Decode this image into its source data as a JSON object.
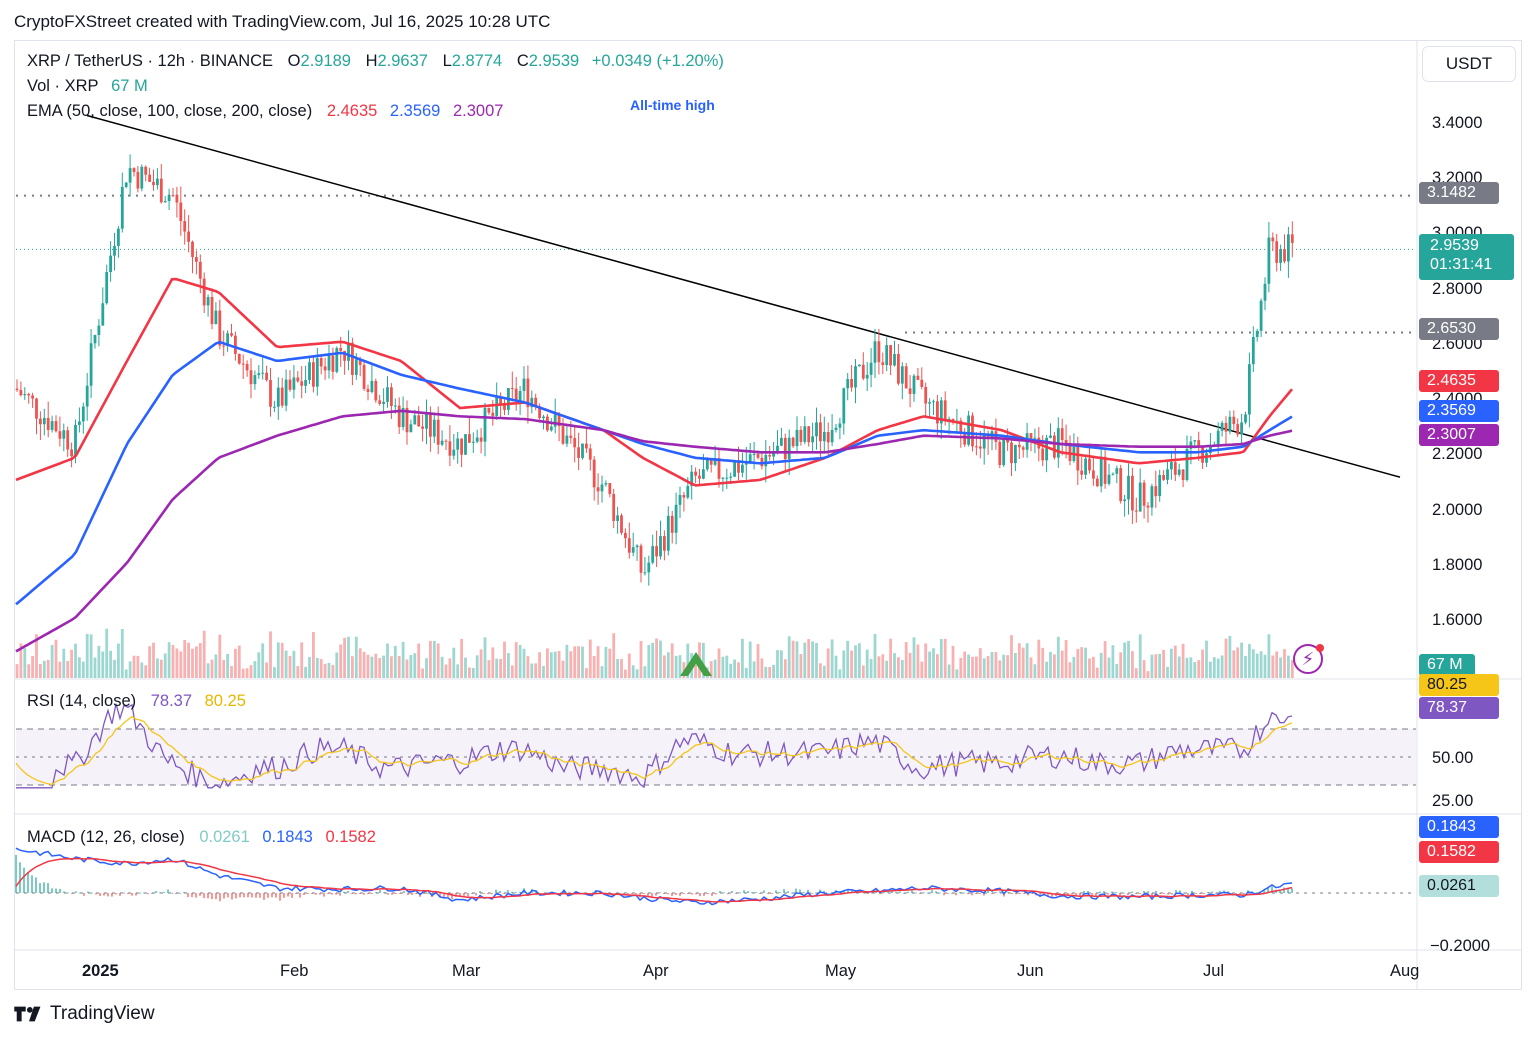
{
  "header": {
    "credit": "CryptoFXStreet created with TradingView.com, Jul 16, 2025 10:28 UTC"
  },
  "legend": {
    "symbol": "XRP / TetherUS · 12h · BINANCE",
    "open_label": "O",
    "open": "2.9189",
    "high_label": "H",
    "high": "2.9637",
    "low_label": "L",
    "low": "2.8774",
    "close_label": "C",
    "close": "2.9539",
    "change": "+0.0349 (+1.20%)",
    "vol_label": "Vol · XRP",
    "vol_value": "67 M",
    "ema_label": "EMA (50, close, 100, close, 200, close)",
    "ema50": "2.4635",
    "ema100": "2.3569",
    "ema200": "2.3007",
    "rsi_label": "RSI (14, close)",
    "rsi": "78.37",
    "rsi_ma": "80.25",
    "macd_label": "MACD (12, 26, close)",
    "macd_hist": "0.0261",
    "macd": "0.1843",
    "macd_signal": "0.1582"
  },
  "annotation": {
    "ath": "All-time high"
  },
  "price_axis": {
    "currency": "USDT",
    "ticks": [
      "3.4000",
      "3.2000",
      "3.0000",
      "2.8000",
      "2.6000",
      "2.4000",
      "2.2000",
      "2.0000",
      "1.8000",
      "1.6000"
    ],
    "tick_values": [
      3.4,
      3.2,
      3.0,
      2.8,
      2.6,
      2.4,
      2.2,
      2.0,
      1.8,
      1.6
    ]
  },
  "price_labels": {
    "resistance_high": "3.1482",
    "last_price": "2.9539",
    "countdown": "01:31:41",
    "resistance_mid": "2.6530",
    "ema50": "2.4635",
    "ema100": "2.3569",
    "ema200": "2.3007",
    "volume": "67 M"
  },
  "rsi_axis": {
    "ticks": [
      "50.00",
      "25.00"
    ],
    "ma_label": "80.25",
    "value_label": "78.37"
  },
  "macd_axis": {
    "ticks": [
      "−0.2000"
    ],
    "macd": "0.1843",
    "signal": "0.1582",
    "hist": "0.0261"
  },
  "date_axis": [
    "2025",
    "Feb",
    "Mar",
    "Apr",
    "May",
    "Jun",
    "Jul",
    "Aug"
  ],
  "footer": {
    "brand": "TradingView"
  },
  "colors": {
    "up": "#26a69a",
    "down": "#ef5350",
    "ema50": "#f23645",
    "ema100": "#2962ff",
    "ema200": "#9c27b0",
    "rsi": "#7e57c2",
    "rsi_ma": "#f5c518",
    "macd": "#2962ff",
    "signal": "#f23645",
    "resistance": "#787b86"
  },
  "chart_data": {
    "type": "line",
    "title": "XRP / TetherUS · 12h · BINANCE",
    "x": [
      "2025-01-01",
      "2025-01-10",
      "2025-01-18",
      "2025-01-25",
      "2025-02-01",
      "2025-02-10",
      "2025-02-20",
      "2025-03-01",
      "2025-03-10",
      "2025-03-20",
      "2025-04-01",
      "2025-04-07",
      "2025-04-15",
      "2025-04-25",
      "2025-05-05",
      "2025-05-13",
      "2025-05-20",
      "2025-06-01",
      "2025-06-10",
      "2025-06-22",
      "2025-07-01",
      "2025-07-08",
      "2025-07-12",
      "2025-07-16"
    ],
    "series": [
      {
        "name": "Close",
        "values": [
          2.45,
          2.25,
          3.25,
          3.15,
          2.65,
          2.4,
          2.6,
          2.35,
          2.25,
          2.45,
          2.1,
          1.78,
          2.12,
          2.2,
          2.3,
          2.6,
          2.4,
          2.22,
          2.25,
          2.05,
          2.22,
          2.35,
          2.95,
          2.9539
        ]
      },
      {
        "name": "EMA 50",
        "values": [
          2.12,
          2.2,
          2.55,
          2.85,
          2.8,
          2.6,
          2.62,
          2.55,
          2.38,
          2.4,
          2.3,
          2.2,
          2.1,
          2.12,
          2.2,
          2.3,
          2.35,
          2.3,
          2.22,
          2.18,
          2.2,
          2.22,
          2.35,
          2.4635
        ]
      },
      {
        "name": "EMA 100",
        "values": [
          1.67,
          1.85,
          2.25,
          2.5,
          2.62,
          2.55,
          2.58,
          2.5,
          2.45,
          2.4,
          2.3,
          2.25,
          2.2,
          2.18,
          2.2,
          2.28,
          2.3,
          2.28,
          2.25,
          2.22,
          2.22,
          2.24,
          2.3,
          2.3569
        ]
      },
      {
        "name": "EMA 200",
        "values": [
          1.5,
          1.62,
          1.82,
          2.05,
          2.2,
          2.28,
          2.35,
          2.37,
          2.35,
          2.34,
          2.3,
          2.26,
          2.24,
          2.22,
          2.22,
          2.25,
          2.28,
          2.27,
          2.25,
          2.24,
          2.24,
          2.25,
          2.28,
          2.3007
        ]
      }
    ],
    "resistance_levels": [
      3.1482,
      2.653
    ],
    "trendline": {
      "from": [
        "2025-01-18",
        3.42
      ],
      "to": [
        "2025-08-01",
        2.13
      ]
    },
    "ylim": [
      1.5,
      3.55
    ],
    "rsi": {
      "ylim": [
        10,
        95
      ],
      "bands": [
        30,
        50,
        70
      ],
      "last": 78.37,
      "ma_last": 80.25
    },
    "macd": {
      "last_macd": 0.1843,
      "last_signal": 0.1582,
      "last_hist": 0.0261
    },
    "volume_last": "67 M",
    "grid": false
  }
}
